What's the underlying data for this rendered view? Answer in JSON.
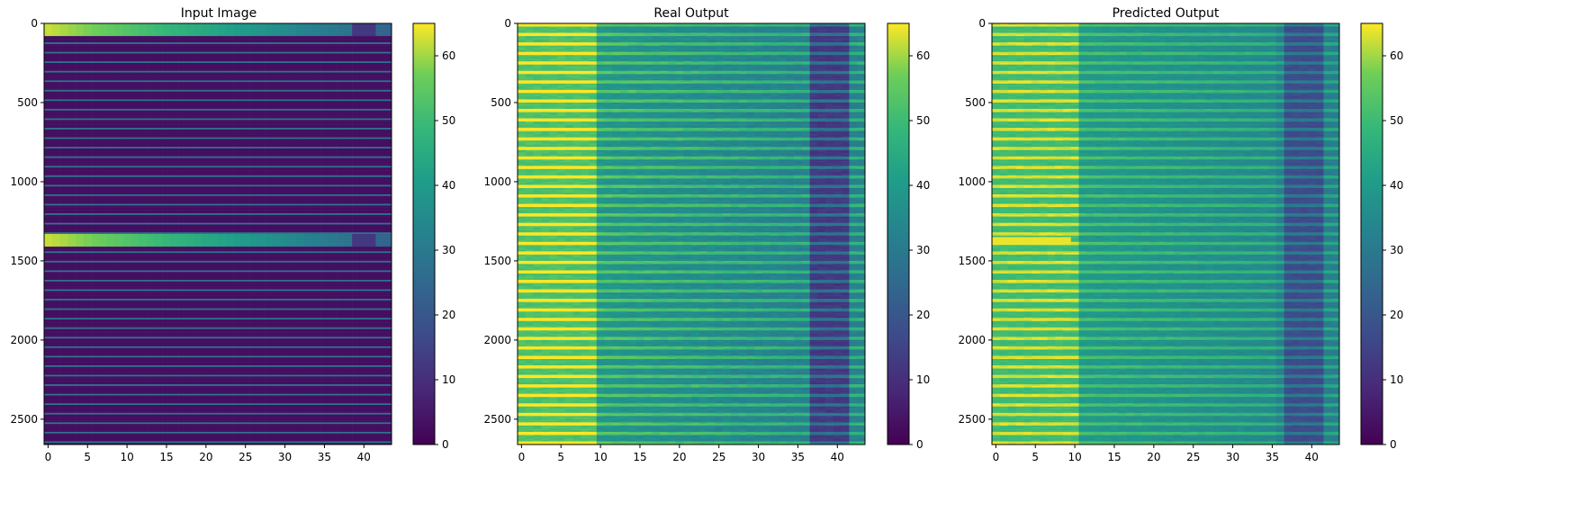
{
  "chart_data": [
    {
      "type": "heatmap",
      "title": "Input Image",
      "xlabel": "",
      "ylabel": "",
      "x_range": [
        -0.5,
        43.5
      ],
      "y_range": [
        0,
        2660
      ],
      "y_inverted": true,
      "xticks": [
        0,
        5,
        10,
        15,
        20,
        25,
        30,
        35,
        40
      ],
      "yticks": [
        0,
        500,
        1000,
        1500,
        2000,
        2500
      ],
      "colorbar": {
        "range": [
          0,
          65
        ],
        "ticks": [
          0,
          10,
          20,
          30,
          40,
          50,
          60
        ]
      },
      "colormap": "viridis",
      "pattern": "mostly ~3 with thin striations ~30 every ~60 rows; two bright bands (rows 0–70 and 1330–1400) with values ~60 at left declining to ~15 at right"
    },
    {
      "type": "heatmap",
      "title": "Real Output",
      "xlabel": "",
      "ylabel": "",
      "x_range": [
        -0.5,
        43.5
      ],
      "y_range": [
        0,
        2660
      ],
      "y_inverted": true,
      "xticks": [
        0,
        5,
        10,
        15,
        20,
        25,
        30,
        35,
        40
      ],
      "yticks": [
        0,
        500,
        1000,
        1500,
        2000,
        2500
      ],
      "colorbar": {
        "range": [
          0,
          65
        ],
        "ticks": [
          0,
          10,
          20,
          30,
          40,
          50,
          60
        ]
      },
      "colormap": "viridis",
      "pattern": "horizontal bands (~60-row period); values ~58 for columns 0–10, ~42 for 10–35, dark ~15 near column 38–41"
    },
    {
      "type": "heatmap",
      "title": "Predicted Output",
      "xlabel": "",
      "ylabel": "",
      "x_range": [
        -0.5,
        43.5
      ],
      "y_range": [
        0,
        2660
      ],
      "y_inverted": true,
      "xticks": [
        0,
        5,
        10,
        15,
        20,
        25,
        30,
        35,
        40
      ],
      "yticks": [
        0,
        500,
        1000,
        1500,
        2000,
        2500
      ],
      "colorbar": {
        "range": [
          0,
          65
        ],
        "ticks": [
          0,
          10,
          20,
          30,
          40,
          50,
          60
        ]
      },
      "colormap": "viridis",
      "pattern": "similar banding to Real Output, smoother; bright spot near row 1370"
    }
  ]
}
